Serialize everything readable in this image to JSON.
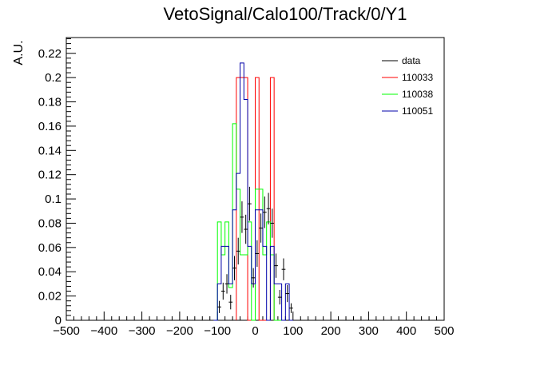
{
  "chart_data": {
    "type": "histogram",
    "title": "VetoSignal/Calo100/Track/0/Y1",
    "ylabel": "A.U.",
    "xlabel": "",
    "xlim": [
      -500,
      500
    ],
    "ylim": [
      0,
      0.233
    ],
    "x_ticks": [
      -500,
      -400,
      -300,
      -200,
      -100,
      0,
      100,
      200,
      300,
      400,
      500
    ],
    "x_tick_labels": [
      "−500",
      "−400",
      "−300",
      "−200",
      "−100",
      "0",
      "100",
      "200",
      "300",
      "400",
      "500"
    ],
    "y_ticks": [
      0,
      0.02,
      0.04,
      0.06,
      0.08,
      0.1,
      0.12,
      0.14,
      0.16,
      0.18,
      0.2,
      0.22
    ],
    "y_tick_labels": [
      "0",
      "0.02",
      "0.04",
      "0.06",
      "0.08",
      "0.1",
      "0.12",
      "0.14",
      "0.16",
      "0.18",
      "0.2",
      "0.22"
    ],
    "bin_width": 10,
    "legend_position": "top-right",
    "series": [
      {
        "name": "data",
        "style": "errorbar",
        "color": "#000000",
        "x": [
          -95,
          -85,
          -75,
          -65,
          -55,
          -45,
          -35,
          -25,
          -15,
          -5,
          5,
          15,
          25,
          35,
          45,
          55,
          65,
          75,
          85,
          95
        ],
        "y": [
          0.011,
          0.024,
          0.03,
          0.015,
          0.043,
          0.057,
          0.085,
          0.075,
          0.096,
          0.035,
          0.055,
          0.076,
          0.089,
          0.092,
          0.08,
          0.045,
          0.019,
          0.042,
          0.022,
          0.01
        ],
        "yerr": [
          0.005,
          0.007,
          0.008,
          0.006,
          0.01,
          0.011,
          0.013,
          0.012,
          0.014,
          0.008,
          0.011,
          0.012,
          0.013,
          0.013,
          0.012,
          0.01,
          0.006,
          0.009,
          0.007,
          0.004
        ]
      },
      {
        "name": "110033",
        "style": "step",
        "color": "#ff0000",
        "x": [
          -45,
          -35,
          -25,
          -15,
          -5,
          5,
          15,
          25,
          35,
          45,
          55
        ],
        "y": [
          0.2,
          0.2,
          0.2,
          0,
          0,
          0.2,
          0,
          0,
          0,
          0.2,
          0
        ]
      },
      {
        "name": "110038",
        "style": "step",
        "color": "#00ff00",
        "x": [
          -105,
          -95,
          -85,
          -75,
          -65,
          -55,
          -45,
          -35,
          -25,
          -15,
          -5,
          5,
          15,
          25,
          35,
          45,
          55,
          65
        ],
        "y": [
          0,
          0.081,
          0.054,
          0.081,
          0.027,
          0.162,
          0.108,
          0.054,
          0.054,
          0.081,
          0,
          0.108,
          0.108,
          0.054,
          0.081,
          0.054,
          0,
          0
        ]
      },
      {
        "name": "110051",
        "style": "step",
        "color": "#0000aa",
        "x": [
          -105,
          -95,
          -85,
          -75,
          -65,
          -55,
          -45,
          -35,
          -25,
          -15,
          -5,
          5,
          15,
          25,
          35,
          45,
          55,
          65,
          75,
          85,
          95
        ],
        "y": [
          0,
          0.03,
          0.061,
          0.061,
          0.03,
          0.091,
          0.121,
          0.212,
          0.182,
          0.061,
          0.03,
          0.091,
          0.091,
          0.061,
          0,
          0.061,
          0.03,
          0.03,
          0,
          0.03,
          0
        ]
      }
    ]
  }
}
